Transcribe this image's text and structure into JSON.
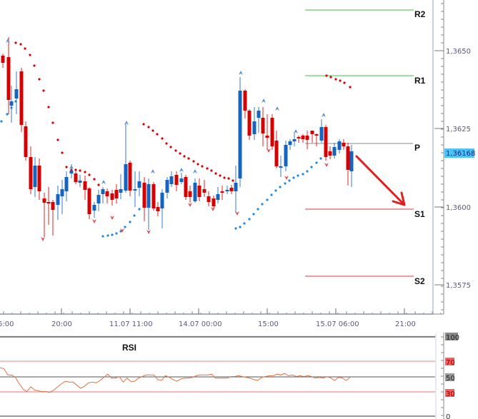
{
  "chart_data": [
    {
      "type": "candlestick",
      "title": "",
      "instrument_precision": 4,
      "y_axis": {
        "ticks": [
          "1,3650",
          "1,3625",
          "1,3600",
          "1,3575"
        ],
        "tick_values": [
          1.365,
          1.3625,
          1.36,
          1.3575
        ],
        "range": [
          1.356,
          1.3665
        ],
        "current_price_label": "1,36168",
        "current_price": 1.36168,
        "current_price_color": "#4fc3f7"
      },
      "x_axis": {
        "tick_labels": [
          "6:00",
          "20:00",
          "11.07 11:00",
          "14.07 00:00",
          "15:00",
          "15.07 06:00",
          "21:00"
        ]
      },
      "pivot_levels": [
        {
          "name": "R2",
          "value": 1.3663,
          "color": "#66cc66"
        },
        {
          "name": "R1",
          "value": 1.3641,
          "color": "#66cc66"
        },
        {
          "name": "P",
          "value": 1.362,
          "color": "#999999"
        },
        {
          "name": "S1",
          "value": 1.3599,
          "color": "#e06060"
        },
        {
          "name": "S2",
          "value": 1.3577,
          "color": "#e06060"
        }
      ],
      "colors": {
        "bull": "#1565c0",
        "bear": "#d50000",
        "sar_bull": "#1e88e5",
        "sar_bear": "#d50000",
        "arrow": "#e02020"
      },
      "annotation": "Red arrow pointing down from last candle toward S1",
      "indicators": [
        "Parabolic SAR (dots)",
        "Fractals (arrows)"
      ]
    },
    {
      "type": "line",
      "title": "RSI",
      "ylim": [
        0,
        100
      ],
      "levels": [
        {
          "value": 100,
          "label": "100",
          "style": "gray"
        },
        {
          "value": 70,
          "label": "70",
          "style": "red"
        },
        {
          "value": 50,
          "label": "50",
          "style": "gray"
        },
        {
          "value": 30,
          "label": "30",
          "style": "red"
        },
        {
          "value": 0,
          "label": "0",
          "style": "plain"
        }
      ],
      "series_color": "#e07040",
      "values_approx": [
        61,
        60,
        52,
        52,
        49,
        41,
        34,
        31,
        37,
        33,
        32,
        31,
        31,
        30,
        33,
        37,
        41,
        44,
        43,
        43,
        39,
        35,
        38,
        42,
        43,
        42,
        45,
        49,
        53,
        48,
        48,
        50,
        43,
        48,
        44,
        44,
        48,
        50,
        52,
        52,
        52,
        46,
        45,
        51,
        49,
        46,
        44,
        47,
        48,
        48,
        49,
        51,
        52,
        52,
        52,
        53,
        48,
        48,
        48,
        48,
        50,
        50,
        51,
        50,
        49,
        48,
        46,
        45,
        49,
        50,
        51,
        51,
        53,
        52,
        54,
        51,
        52,
        50,
        51,
        50,
        51,
        50,
        48,
        49,
        48,
        50,
        48,
        45,
        49,
        48,
        45,
        49
      ]
    }
  ],
  "rsi": {
    "title": "RSI"
  },
  "labels": {
    "r2": "R2",
    "r1": "R1",
    "p": "P",
    "s1": "S1",
    "s2": "S2"
  }
}
